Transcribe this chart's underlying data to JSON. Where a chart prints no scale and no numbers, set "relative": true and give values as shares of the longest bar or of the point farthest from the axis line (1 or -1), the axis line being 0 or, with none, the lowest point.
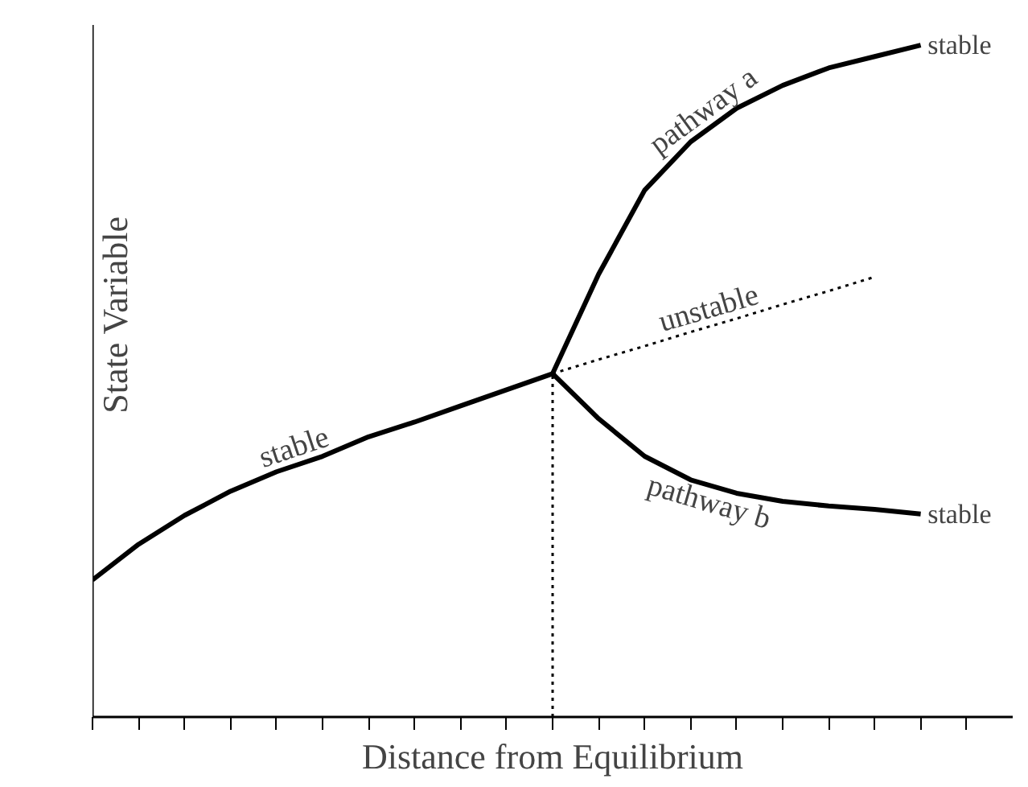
{
  "chart_data": {
    "type": "line",
    "relative": true,
    "xlabel": "Distance from Equilibrium",
    "ylabel": "State Variable",
    "line_style": "solid",
    "marker": "none",
    "grid": false,
    "categories": [
      null,
      null,
      null,
      null,
      null,
      null,
      null,
      null,
      null,
      null,
      null,
      null,
      null,
      null,
      null,
      null,
      null,
      null,
      null,
      null
    ],
    "series": [
      {
        "name": "stable",
        "color": "#000000",
        "values": [
          0.204,
          0.257,
          0.3,
          0.336,
          0.365,
          0.388,
          0.417,
          0.439,
          0.463,
          0.487,
          0.511,
          null,
          null,
          null,
          null,
          null,
          null,
          null,
          null,
          null
        ]
      },
      {
        "name": "pathway a",
        "color": "#000000",
        "values": [
          null,
          null,
          null,
          null,
          null,
          null,
          null,
          null,
          null,
          null,
          0.511,
          0.659,
          0.784,
          0.856,
          0.906,
          0.94,
          0.966,
          0.983,
          1.0,
          null
        ]
      },
      {
        "name": "unstable",
        "color": "#000000",
        "line_style": "dotted",
        "values": [
          null,
          null,
          null,
          null,
          null,
          null,
          null,
          null,
          null,
          null,
          0.511,
          0.532,
          0.552,
          0.573,
          0.593,
          0.614,
          0.634,
          0.655,
          null,
          null
        ]
      },
      {
        "name": "pathway b",
        "color": "#000000",
        "values": [
          null,
          null,
          null,
          null,
          null,
          null,
          null,
          null,
          null,
          null,
          0.511,
          0.444,
          0.388,
          0.353,
          0.333,
          0.321,
          0.314,
          0.309,
          0.302,
          null
        ]
      }
    ],
    "annotations": [
      "stable",
      "stable"
    ]
  }
}
